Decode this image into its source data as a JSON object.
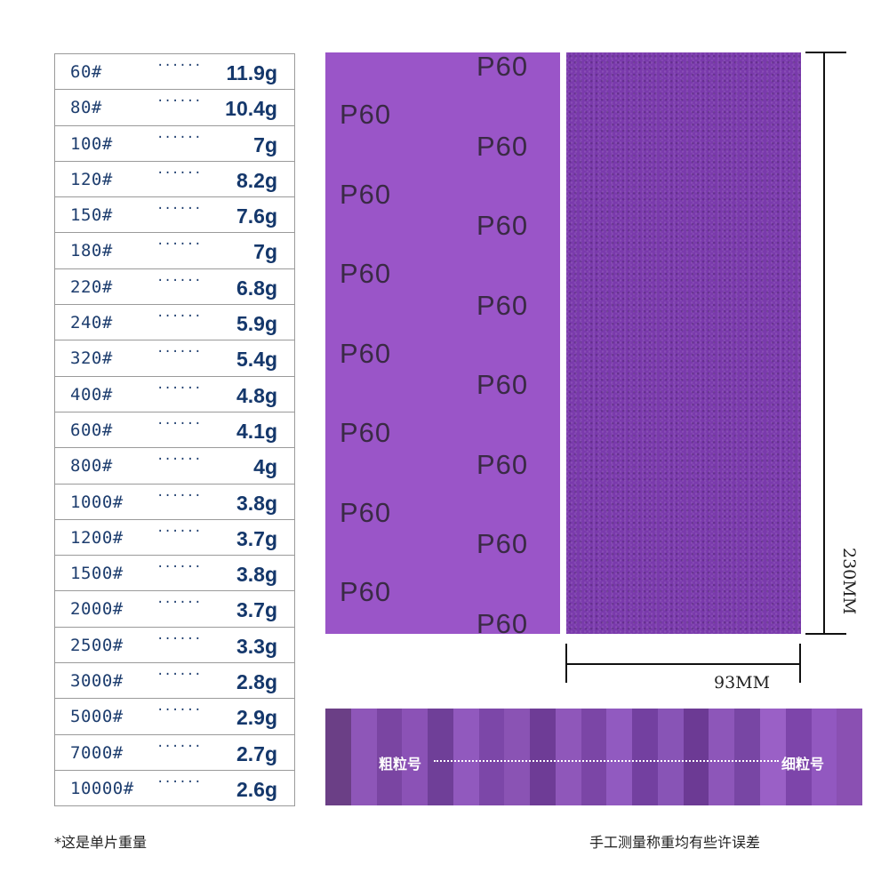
{
  "weight_table": {
    "leader": "······",
    "rows": [
      {
        "grit": "60#",
        "weight": "11.9g"
      },
      {
        "grit": "80#",
        "weight": "10.4g"
      },
      {
        "grit": "100#",
        "weight": "7g"
      },
      {
        "grit": "120#",
        "weight": "8.2g"
      },
      {
        "grit": "150#",
        "weight": "7.6g"
      },
      {
        "grit": "180#",
        "weight": "7g"
      },
      {
        "grit": "220#",
        "weight": "6.8g"
      },
      {
        "grit": "240#",
        "weight": "5.9g"
      },
      {
        "grit": "320#",
        "weight": "5.4g"
      },
      {
        "grit": "400#",
        "weight": "4.8g"
      },
      {
        "grit": "600#",
        "weight": "4.1g"
      },
      {
        "grit": "800#",
        "weight": "4g"
      },
      {
        "grit": "1000#",
        "weight": "3.8g"
      },
      {
        "grit": "1200#",
        "weight": "3.7g"
      },
      {
        "grit": "1500#",
        "weight": "3.8g"
      },
      {
        "grit": "2000#",
        "weight": "3.7g"
      },
      {
        "grit": "2500#",
        "weight": "3.3g"
      },
      {
        "grit": "3000#",
        "weight": "2.8g"
      },
      {
        "grit": "5000#",
        "weight": "2.9g"
      },
      {
        "grit": "7000#",
        "weight": "2.7g"
      },
      {
        "grit": "10000#",
        "weight": "2.6g"
      }
    ]
  },
  "sheet": {
    "back_print": "P60",
    "back_color": "#9a55c8",
    "front_color": "#7a3aac"
  },
  "dimensions": {
    "height": "230MM",
    "width": "93MM"
  },
  "strip": {
    "coarse_label": "粗粒号",
    "fine_label": "细粒号",
    "swatch_colors": [
      "#6b3f86",
      "#8e56b8",
      "#7a45a2",
      "#8b52b6",
      "#6f3f98",
      "#9159be",
      "#7c47a8",
      "#8a53b4",
      "#6e3c96",
      "#8f57ba",
      "#7b46a6",
      "#915ac0",
      "#7340a0",
      "#8854b6",
      "#6c3a94",
      "#8d56b9",
      "#7846a4",
      "#9a60c6",
      "#7d45aa",
      "#9258c0",
      "#8a50b2"
    ]
  },
  "footnotes": {
    "single_weight": "*这是单片重量",
    "measure_error": "手工测量称重均有些许误差"
  }
}
